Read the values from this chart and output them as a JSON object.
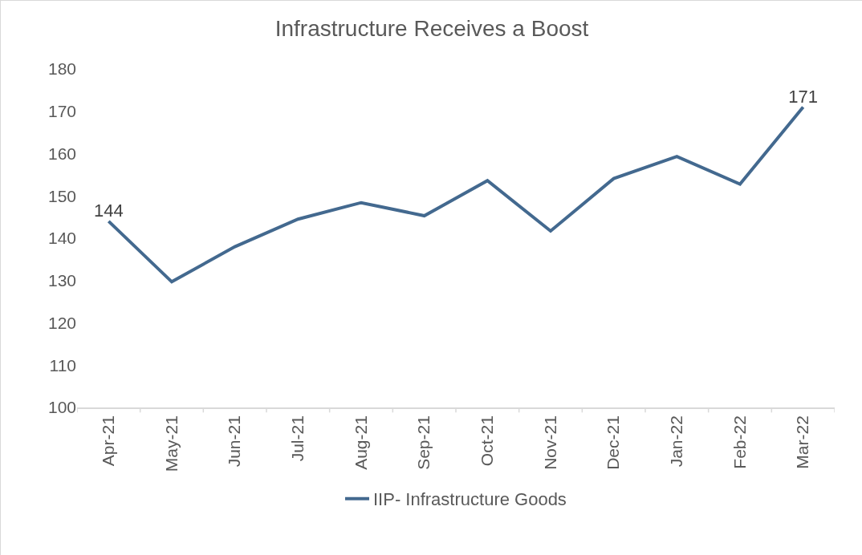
{
  "chart_data": {
    "type": "line",
    "title": "Infrastructure Receives a Boost",
    "categories": [
      "Apr-21",
      "May-21",
      "Jun-21",
      "Jul-21",
      "Aug-21",
      "Sep-21",
      "Oct-21",
      "Nov-21",
      "Dec-21",
      "Jan-22",
      "Feb-22",
      "Mar-22"
    ],
    "series": [
      {
        "name": "IIP- Infrastructure Goods",
        "color": "#43698f",
        "values": [
          144,
          129.7,
          138,
          144.5,
          148.4,
          145.3,
          153.6,
          141.7,
          154.1,
          159.3,
          152.8,
          171
        ],
        "value_labels": [
          "144",
          null,
          null,
          null,
          null,
          null,
          null,
          null,
          null,
          null,
          null,
          "171"
        ]
      }
    ],
    "ylim": [
      100,
      180
    ],
    "yticks": [
      100,
      110,
      120,
      130,
      140,
      150,
      160,
      170,
      180
    ],
    "grid": false,
    "legend": "bottom",
    "marker": "none",
    "line_style": "solid"
  }
}
